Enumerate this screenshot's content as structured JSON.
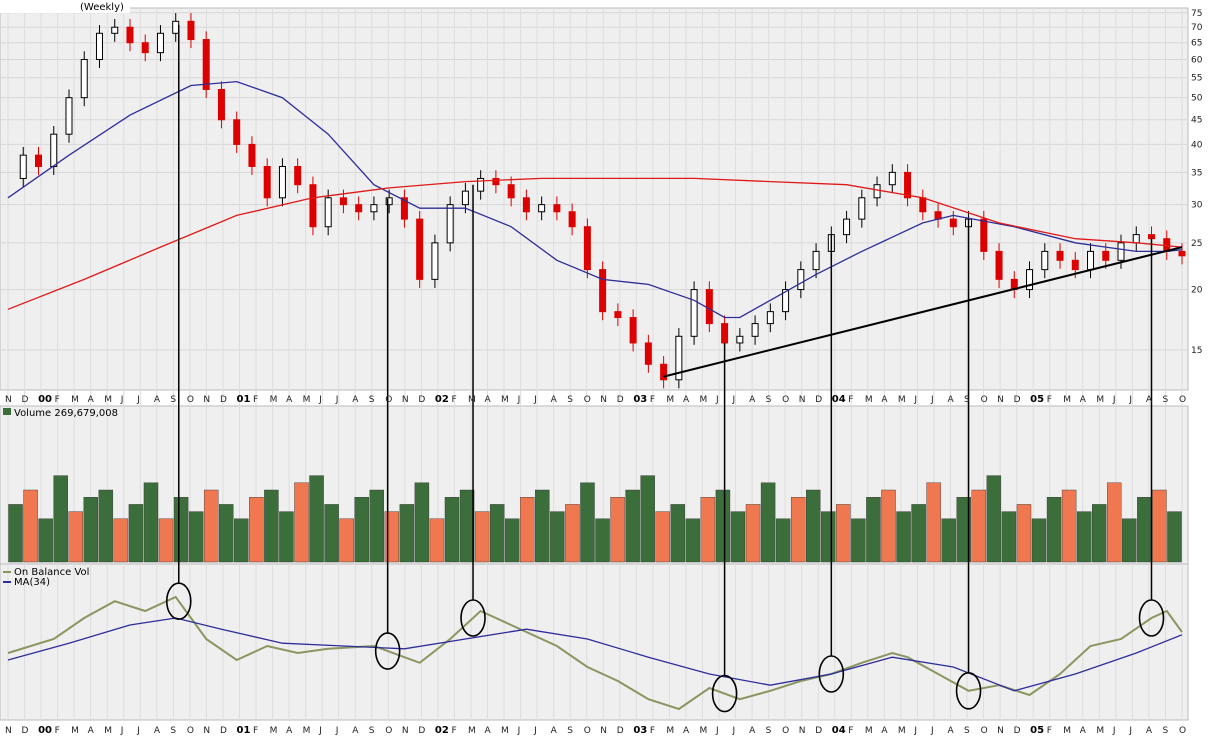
{
  "chart_data": {
    "type": "line",
    "title": "(Weekly)",
    "time_axis": {
      "months": [
        "N",
        "D",
        "00",
        "F",
        "M",
        "A",
        "M",
        "J",
        "J",
        "A",
        "S",
        "O",
        "N",
        "D",
        "01",
        "F",
        "M",
        "A",
        "M",
        "J",
        "J",
        "A",
        "S",
        "O",
        "N",
        "D",
        "02",
        "F",
        "M",
        "A",
        "M",
        "J",
        "J",
        "A",
        "S",
        "O",
        "N",
        "D",
        "03",
        "F",
        "M",
        "A",
        "M",
        "J",
        "J",
        "A",
        "S",
        "O",
        "N",
        "D",
        "04",
        "F",
        "M",
        "A",
        "M",
        "J",
        "J",
        "A",
        "S",
        "O",
        "N",
        "D",
        "05",
        "F",
        "M",
        "A",
        "M",
        "J",
        "J",
        "A",
        "S",
        "O"
      ],
      "year_labels": [
        "00",
        "01",
        "02",
        "03",
        "04",
        "05"
      ]
    },
    "price_panel": {
      "scale": "log",
      "ylim": [
        12.5,
        76
      ],
      "yticks": [
        15,
        20,
        25,
        30,
        35,
        40,
        45,
        50,
        55,
        60,
        65,
        70,
        75
      ],
      "series": [
        {
          "name": "Price (weekly candles)",
          "color_up": "#000000",
          "color_down": "#dd0000",
          "points": [
            [
              0,
              34
            ],
            [
              1,
              38
            ],
            [
              2,
              36
            ],
            [
              3,
              42
            ],
            [
              4,
              50
            ],
            [
              5,
              60
            ],
            [
              6,
              68
            ],
            [
              7,
              70
            ],
            [
              8,
              65
            ],
            [
              9,
              62
            ],
            [
              10,
              68
            ],
            [
              11,
              72
            ],
            [
              12,
              66
            ],
            [
              13,
              52
            ],
            [
              14,
              45
            ],
            [
              15,
              40
            ],
            [
              16,
              36
            ],
            [
              17,
              31
            ],
            [
              18,
              36
            ],
            [
              19,
              33
            ],
            [
              20,
              27
            ],
            [
              21,
              31
            ],
            [
              22,
              30
            ],
            [
              23,
              29
            ],
            [
              24,
              30
            ],
            [
              25,
              31
            ],
            [
              26,
              28
            ],
            [
              27,
              21
            ],
            [
              28,
              25
            ],
            [
              29,
              30
            ],
            [
              30,
              32
            ],
            [
              31,
              34
            ],
            [
              32,
              33
            ],
            [
              33,
              31
            ],
            [
              34,
              29
            ],
            [
              35,
              30
            ],
            [
              36,
              29
            ],
            [
              37,
              27
            ],
            [
              38,
              22
            ],
            [
              39,
              18
            ],
            [
              40,
              17.5
            ],
            [
              41,
              15.5
            ],
            [
              42,
              14
            ],
            [
              43,
              13
            ],
            [
              44,
              16
            ],
            [
              45,
              20
            ],
            [
              46,
              17
            ],
            [
              47,
              15.5
            ],
            [
              48,
              16
            ],
            [
              49,
              17
            ],
            [
              50,
              18
            ],
            [
              51,
              20
            ],
            [
              52,
              22
            ],
            [
              53,
              24
            ],
            [
              54,
              26
            ],
            [
              55,
              28
            ],
            [
              56,
              31
            ],
            [
              57,
              33
            ],
            [
              58,
              35
            ],
            [
              59,
              31
            ],
            [
              60,
              29
            ],
            [
              61,
              28
            ],
            [
              62,
              27
            ],
            [
              63,
              28
            ],
            [
              64,
              24
            ],
            [
              65,
              21
            ],
            [
              66,
              20
            ],
            [
              67,
              22
            ],
            [
              68,
              24
            ],
            [
              69,
              23
            ],
            [
              70,
              22
            ],
            [
              71,
              24
            ],
            [
              72,
              23
            ],
            [
              73,
              25
            ],
            [
              74,
              26
            ],
            [
              75,
              25.5
            ],
            [
              76,
              24
            ],
            [
              77,
              23.5
            ]
          ]
        },
        {
          "name": "MA 50-week",
          "color": "#2d2d9a",
          "points": [
            [
              0,
              31
            ],
            [
              4,
              38
            ],
            [
              8,
              46
            ],
            [
              12,
              53
            ],
            [
              15,
              54
            ],
            [
              18,
              50
            ],
            [
              21,
              42
            ],
            [
              24,
              33
            ],
            [
              27,
              29.5
            ],
            [
              30,
              29.5
            ],
            [
              33,
              27
            ],
            [
              36,
              23
            ],
            [
              39,
              21
            ],
            [
              42,
              20.5
            ],
            [
              45,
              19
            ],
            [
              47,
              17.5
            ],
            [
              48,
              17.5
            ],
            [
              50,
              19
            ],
            [
              53,
              21.5
            ],
            [
              56,
              24
            ],
            [
              60,
              27.5
            ],
            [
              62,
              28.5
            ],
            [
              66,
              27
            ],
            [
              70,
              25
            ],
            [
              72,
              24.5
            ],
            [
              74,
              24
            ],
            [
              76,
              24
            ],
            [
              77,
              24.2
            ]
          ]
        },
        {
          "name": "MA 200-week",
          "color": "#e01818",
          "points": [
            [
              0,
              18.2
            ],
            [
              5,
              21
            ],
            [
              10,
              24.5
            ],
            [
              15,
              28.5
            ],
            [
              20,
              31
            ],
            [
              25,
              32.5
            ],
            [
              30,
              33.5
            ],
            [
              35,
              34
            ],
            [
              40,
              34
            ],
            [
              45,
              34
            ],
            [
              50,
              33.5
            ],
            [
              55,
              33
            ],
            [
              60,
              31
            ],
            [
              65,
              27.5
            ],
            [
              70,
              25.5
            ],
            [
              74,
              25
            ],
            [
              77,
              24.5
            ]
          ]
        },
        {
          "name": "Trendline",
          "color": "#000000",
          "points": [
            [
              43,
              13.2
            ],
            [
              77,
              24.5
            ]
          ]
        }
      ]
    },
    "volume_panel": {
      "label": "Volume",
      "value": "269,679,008",
      "colors": {
        "up": "#3c6e3c",
        "down": "#f07850"
      },
      "series": [
        {
          "name": "Volume",
          "values": [
            0.4,
            0.5,
            0.3,
            0.6,
            0.35,
            0.45,
            0.5,
            0.3,
            0.4,
            0.55,
            0.3,
            0.45,
            0.35,
            0.5,
            0.4,
            0.3,
            0.45,
            0.5,
            0.35,
            0.55,
            0.6,
            0.4,
            0.3,
            0.45,
            0.5,
            0.35,
            0.4,
            0.55,
            0.3,
            0.45,
            0.5,
            0.35,
            0.4,
            0.3,
            0.45,
            0.5,
            0.35,
            0.4,
            0.55,
            0.3,
            0.45,
            0.5,
            0.6,
            0.35,
            0.4,
            0.3,
            0.45,
            0.5,
            0.35,
            0.4,
            0.55,
            0.3,
            0.45,
            0.5,
            0.35,
            0.4,
            0.3,
            0.45,
            0.5,
            0.35,
            0.4,
            0.55,
            0.3,
            0.45,
            0.5,
            0.6,
            0.35,
            0.4,
            0.3,
            0.45,
            0.5,
            0.35,
            0.4,
            0.55,
            0.3,
            0.45,
            0.5,
            0.35
          ]
        }
      ]
    },
    "obv_panel": {
      "legend": [
        "On Balance Vol",
        "MA(34)"
      ],
      "colors": {
        "obv": "#8a9660",
        "ma": "#2d2d9a"
      },
      "series": [
        {
          "name": "On Balance Vol",
          "points": [
            [
              0,
              0.45
            ],
            [
              3,
              0.55
            ],
            [
              5,
              0.7
            ],
            [
              7,
              0.82
            ],
            [
              9,
              0.75
            ],
            [
              11,
              0.85
            ],
            [
              12,
              0.7
            ],
            [
              13,
              0.55
            ],
            [
              15,
              0.4
            ],
            [
              17,
              0.5
            ],
            [
              19,
              0.45
            ],
            [
              21,
              0.48
            ],
            [
              24,
              0.5
            ],
            [
              27,
              0.38
            ],
            [
              29,
              0.55
            ],
            [
              31,
              0.75
            ],
            [
              33,
              0.65
            ],
            [
              34,
              0.6
            ],
            [
              36,
              0.5
            ],
            [
              38,
              0.35
            ],
            [
              40,
              0.25
            ],
            [
              42,
              0.12
            ],
            [
              44,
              0.05
            ],
            [
              46,
              0.2
            ],
            [
              48,
              0.12
            ],
            [
              50,
              0.18
            ],
            [
              52,
              0.25
            ],
            [
              54,
              0.3
            ],
            [
              56,
              0.38
            ],
            [
              58,
              0.45
            ],
            [
              59,
              0.42
            ],
            [
              61,
              0.3
            ],
            [
              63,
              0.18
            ],
            [
              65,
              0.22
            ],
            [
              67,
              0.15
            ],
            [
              69,
              0.3
            ],
            [
              71,
              0.5
            ],
            [
              73,
              0.55
            ],
            [
              75,
              0.7
            ],
            [
              76,
              0.75
            ],
            [
              77,
              0.6
            ]
          ]
        },
        {
          "name": "MA(34)",
          "points": [
            [
              0,
              0.4
            ],
            [
              4,
              0.52
            ],
            [
              8,
              0.65
            ],
            [
              11,
              0.7
            ],
            [
              14,
              0.62
            ],
            [
              18,
              0.52
            ],
            [
              22,
              0.5
            ],
            [
              26,
              0.48
            ],
            [
              30,
              0.55
            ],
            [
              34,
              0.62
            ],
            [
              38,
              0.55
            ],
            [
              42,
              0.42
            ],
            [
              46,
              0.3
            ],
            [
              50,
              0.22
            ],
            [
              54,
              0.3
            ],
            [
              58,
              0.42
            ],
            [
              62,
              0.35
            ],
            [
              66,
              0.18
            ],
            [
              70,
              0.3
            ],
            [
              74,
              0.45
            ],
            [
              77,
              0.58
            ]
          ]
        }
      ]
    },
    "annotations": [
      {
        "type": "vertical-line-with-circle",
        "week_index": 11.2,
        "circle": "obv"
      },
      {
        "type": "vertical-line-with-circle",
        "week_index": 24.9,
        "circle": "obv"
      },
      {
        "type": "vertical-line-with-circle",
        "week_index": 30.5,
        "circle": "obv"
      },
      {
        "type": "vertical-line-with-circle",
        "week_index": 47.0,
        "circle": "obv"
      },
      {
        "type": "vertical-line-with-circle",
        "week_index": 54.0,
        "circle": "obv"
      },
      {
        "type": "vertical-line-with-circle",
        "week_index": 63.0,
        "circle": "obv"
      },
      {
        "type": "vertical-line-with-circle",
        "week_index": 75.0,
        "circle": "obv"
      }
    ]
  }
}
